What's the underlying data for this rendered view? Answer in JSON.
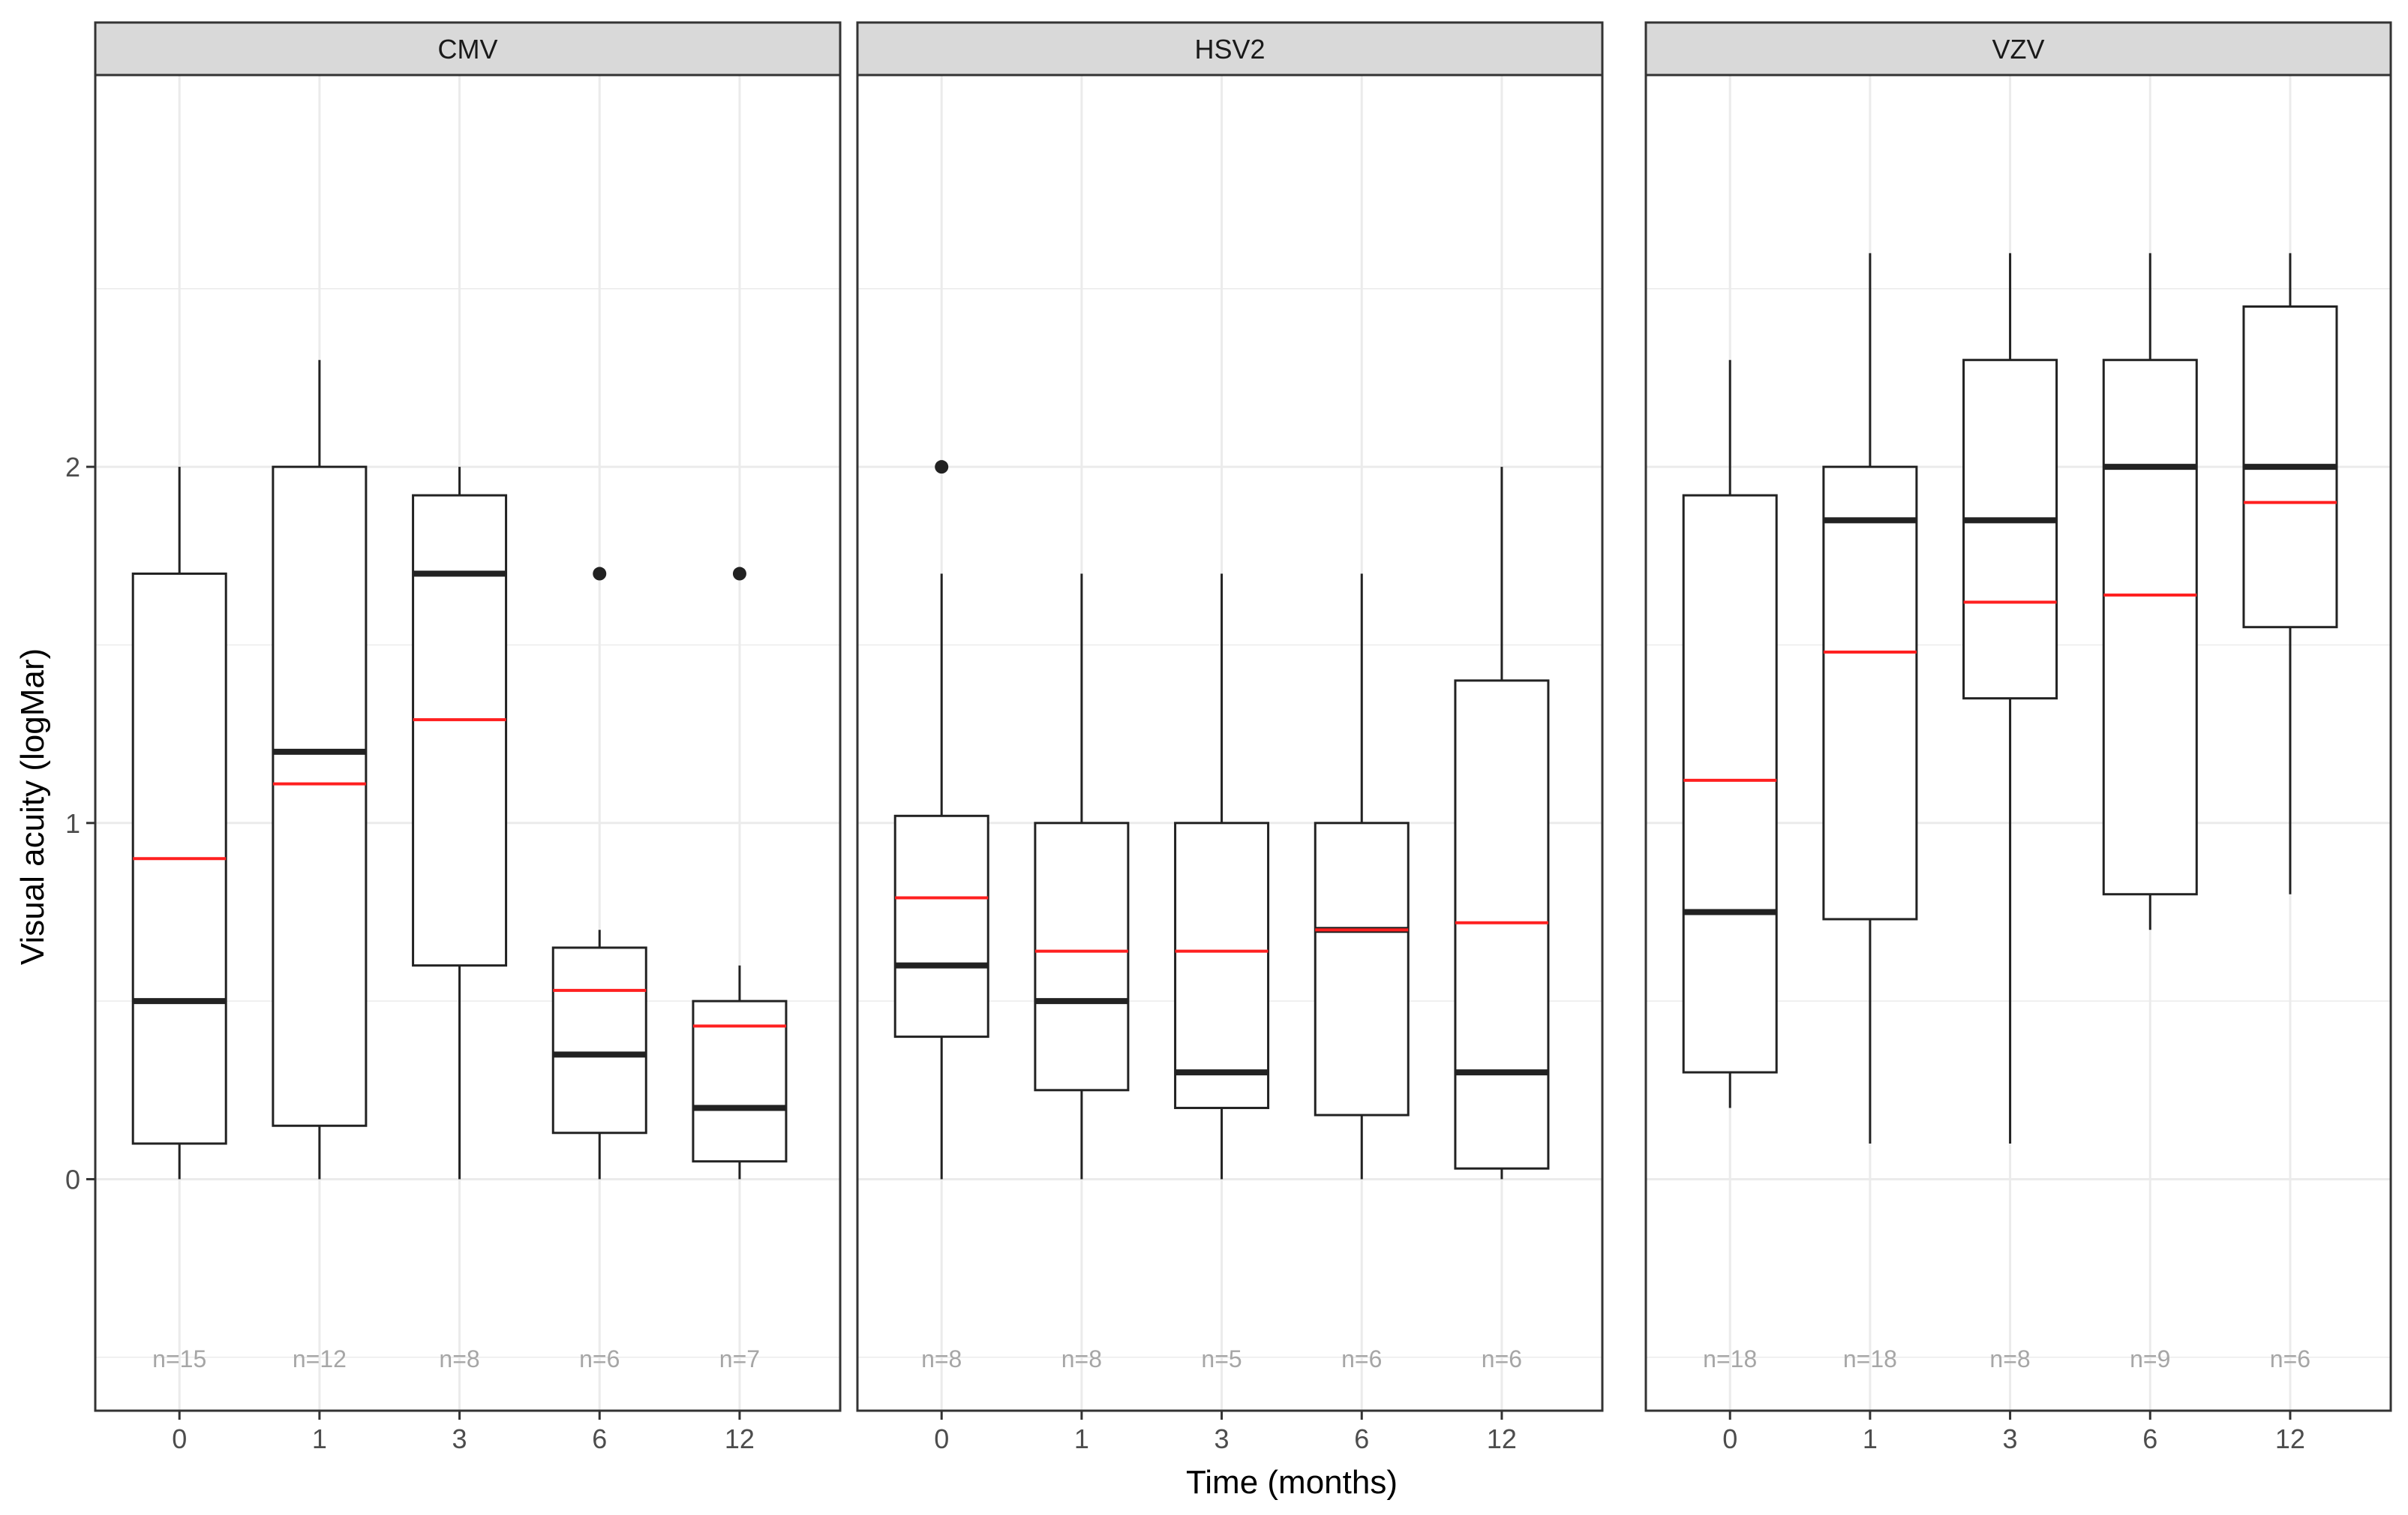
{
  "chart_data": {
    "type": "boxplot",
    "facet_by": "virus",
    "xlabel": "Time (months)",
    "ylabel": "Visual acuity (logMar)",
    "x_categories": [
      "0",
      "1",
      "3",
      "6",
      "12"
    ],
    "y_ticks": [
      0,
      1,
      2
    ],
    "y_tick_labels": [
      "0",
      "1",
      "2"
    ],
    "ylim": [
      -0.65,
      3.1
    ],
    "grid": true,
    "colors": {
      "median": "#222222",
      "mean": "#ff2020",
      "box": "#222222",
      "count_label": "#a6a6a6",
      "strip": "#d9d9d9",
      "grid": "#ebebeb"
    },
    "panels": [
      {
        "title": "CMV",
        "groups": [
          {
            "x": "0",
            "n_label": "n=15",
            "min": 0,
            "q1": 0.1,
            "median": 0.5,
            "q3": 1.7,
            "max": 2.0,
            "mean": 0.9,
            "outliers": []
          },
          {
            "x": "1",
            "n_label": "n=12",
            "min": 0,
            "q1": 0.15,
            "median": 1.2,
            "q3": 2.0,
            "max": 2.3,
            "mean": 1.11,
            "outliers": []
          },
          {
            "x": "3",
            "n_label": "n=8",
            "min": 0,
            "q1": 0.6,
            "median": 1.7,
            "q3": 1.92,
            "max": 2.0,
            "mean": 1.29,
            "outliers": []
          },
          {
            "x": "6",
            "n_label": "n=6",
            "min": 0,
            "q1": 0.13,
            "median": 0.35,
            "q3": 0.65,
            "max": 0.7,
            "mean": 0.53,
            "outliers": [
              1.7
            ]
          },
          {
            "x": "12",
            "n_label": "n=7",
            "min": 0,
            "q1": 0.05,
            "median": 0.2,
            "q3": 0.5,
            "max": 0.6,
            "mean": 0.43,
            "outliers": [
              1.7
            ]
          }
        ]
      },
      {
        "title": "HSV2",
        "groups": [
          {
            "x": "0",
            "n_label": "n=8",
            "min": 0,
            "q1": 0.4,
            "median": 0.6,
            "q3": 1.02,
            "max": 1.7,
            "mean": 0.79,
            "outliers": [
              2.0
            ]
          },
          {
            "x": "1",
            "n_label": "n=8",
            "min": 0,
            "q1": 0.25,
            "median": 0.5,
            "q3": 1.0,
            "max": 1.7,
            "mean": 0.64,
            "outliers": []
          },
          {
            "x": "3",
            "n_label": "n=5",
            "min": 0,
            "q1": 0.2,
            "median": 0.3,
            "q3": 1.0,
            "max": 1.7,
            "mean": 0.64,
            "outliers": []
          },
          {
            "x": "6",
            "n_label": "n=6",
            "min": 0,
            "q1": 0.18,
            "median": 0.7,
            "q3": 1.0,
            "max": 1.7,
            "mean": 0.7,
            "outliers": []
          },
          {
            "x": "12",
            "n_label": "n=6",
            "min": 0,
            "q1": 0.03,
            "median": 0.3,
            "q3": 1.4,
            "max": 2.0,
            "mean": 0.72,
            "outliers": []
          }
        ]
      },
      {
        "title": "VZV",
        "groups": [
          {
            "x": "0",
            "n_label": "n=18",
            "min": 0.2,
            "q1": 0.3,
            "median": 0.75,
            "q3": 1.92,
            "max": 2.3,
            "mean": 1.12,
            "outliers": []
          },
          {
            "x": "1",
            "n_label": "n=18",
            "min": 0.1,
            "q1": 0.73,
            "median": 1.85,
            "q3": 2.0,
            "max": 2.6,
            "mean": 1.48,
            "outliers": []
          },
          {
            "x": "3",
            "n_label": "n=8",
            "min": 0.1,
            "q1": 1.35,
            "median": 1.85,
            "q3": 2.3,
            "max": 2.6,
            "mean": 1.62,
            "outliers": []
          },
          {
            "x": "6",
            "n_label": "n=9",
            "min": 0.7,
            "q1": 0.8,
            "median": 2.0,
            "q3": 2.3,
            "max": 2.6,
            "mean": 1.64,
            "outliers": []
          },
          {
            "x": "12",
            "n_label": "n=6",
            "min": 0.8,
            "q1": 1.55,
            "median": 2.0,
            "q3": 2.45,
            "max": 2.6,
            "mean": 1.9,
            "outliers": []
          }
        ]
      }
    ]
  }
}
